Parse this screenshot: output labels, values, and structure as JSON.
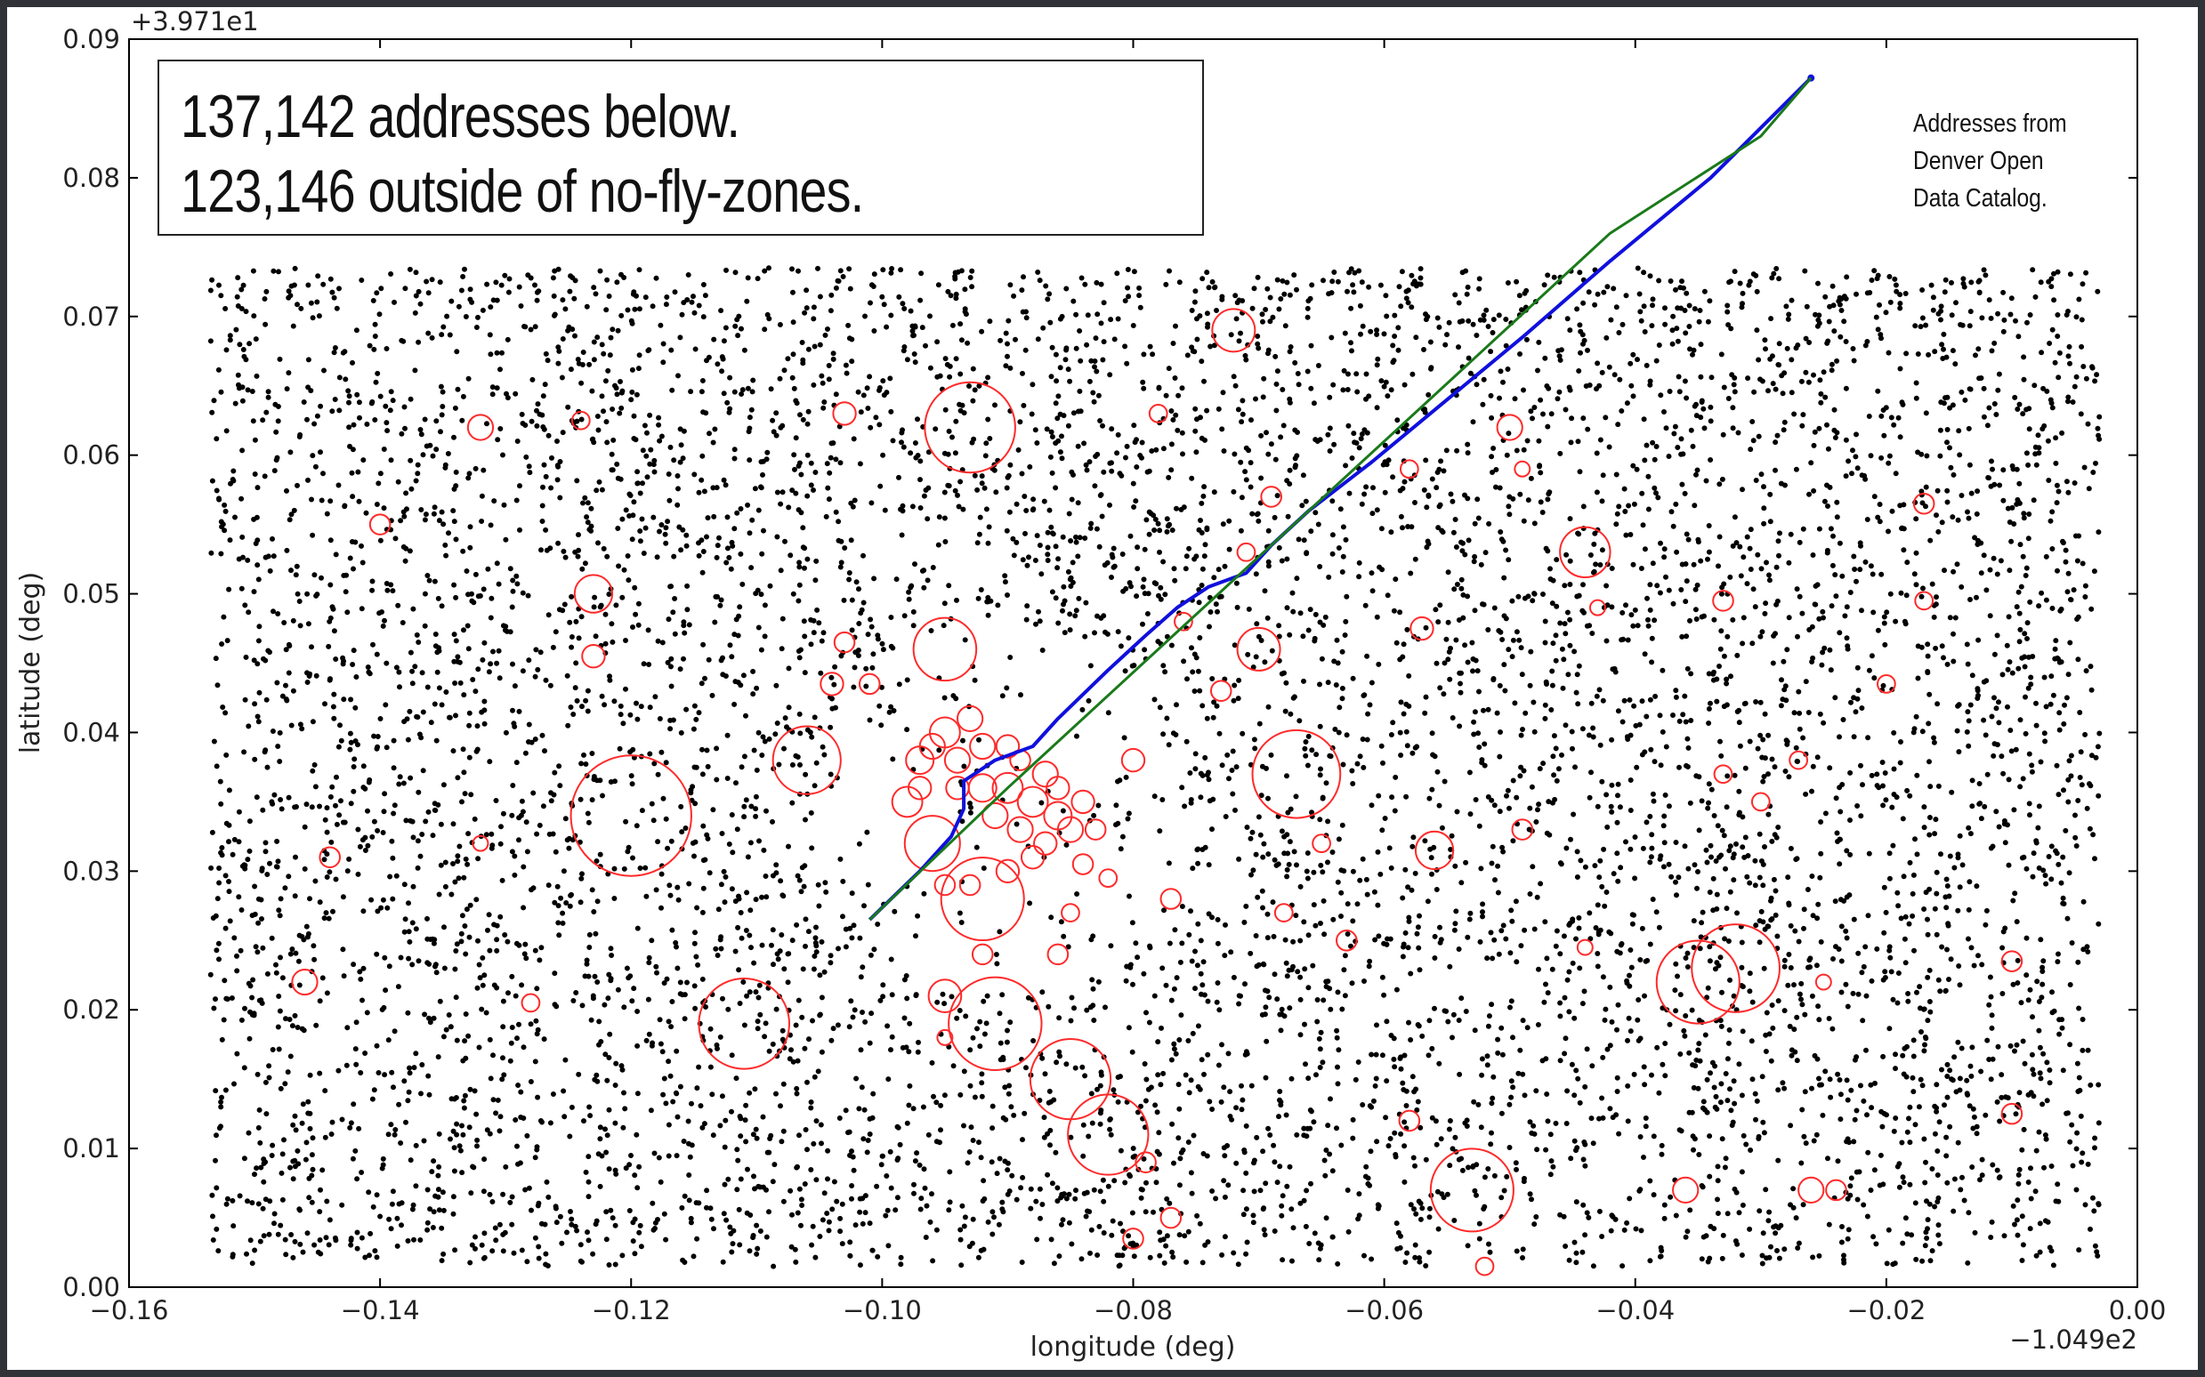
{
  "chart_data": {
    "type": "scatter",
    "title": "",
    "xlabel": "longitude (deg)",
    "ylabel": "latitude (deg)",
    "x_offset_label": "−1.049e2",
    "y_offset_label": "+3.971e1",
    "xlim": [
      -0.16,
      0.0
    ],
    "ylim": [
      0.0,
      0.09
    ],
    "x_ticks": [
      -0.16,
      -0.14,
      -0.12,
      -0.1,
      -0.08,
      -0.06,
      -0.04,
      -0.02,
      0.0
    ],
    "y_ticks": [
      0.0,
      0.01,
      0.02,
      0.03,
      0.04,
      0.05,
      0.06,
      0.07,
      0.08,
      0.09
    ],
    "x_tick_labels": [
      "−0.16",
      "−0.14",
      "−0.12",
      "−0.10",
      "−0.08",
      "−0.06",
      "−0.04",
      "−0.02",
      "0.00"
    ],
    "y_tick_labels": [
      "0.00",
      "0.01",
      "0.02",
      "0.03",
      "0.04",
      "0.05",
      "0.06",
      "0.07",
      "0.08",
      "0.09"
    ],
    "grid": false,
    "annotations": {
      "stats_line_1": "137,142 addresses below.",
      "stats_line_2": "123,146 outside of no-fly-zones.",
      "source": "Addresses from Denver Open Data Catalog."
    },
    "address_region": {
      "x_range": [
        -0.1535,
        -0.003
      ],
      "y_range": [
        0.0015,
        0.0735
      ],
      "point_color": "#000000"
    },
    "no_fly_zones": {
      "color": "#ff2a2a",
      "zones": [
        [
          -0.12,
          0.034,
          0.0048
        ],
        [
          -0.093,
          0.062,
          0.0036
        ],
        [
          -0.111,
          0.019,
          0.0036
        ],
        [
          -0.106,
          0.038,
          0.0027
        ],
        [
          -0.095,
          0.046,
          0.0025
        ],
        [
          -0.067,
          0.037,
          0.0035
        ],
        [
          -0.091,
          0.019,
          0.0037
        ],
        [
          -0.085,
          0.015,
          0.0032
        ],
        [
          -0.082,
          0.011,
          0.0032
        ],
        [
          -0.053,
          0.007,
          0.0033
        ],
        [
          -0.035,
          0.022,
          0.0033
        ],
        [
          -0.032,
          0.023,
          0.0035
        ],
        [
          -0.092,
          0.028,
          0.0033
        ],
        [
          -0.096,
          0.032,
          0.0022
        ],
        [
          -0.07,
          0.046,
          0.0017
        ],
        [
          -0.044,
          0.053,
          0.002
        ],
        [
          -0.072,
          0.069,
          0.0017
        ],
        [
          -0.123,
          0.05,
          0.0015
        ],
        [
          -0.056,
          0.0315,
          0.0015
        ],
        [
          -0.095,
          0.021,
          0.0013
        ],
        [
          -0.132,
          0.062,
          0.001
        ],
        [
          -0.14,
          0.055,
          0.0008
        ],
        [
          -0.103,
          0.063,
          0.0009
        ],
        [
          -0.078,
          0.063,
          0.0007
        ],
        [
          -0.124,
          0.0625,
          0.0007
        ],
        [
          -0.123,
          0.0455,
          0.0009
        ],
        [
          -0.104,
          0.0435,
          0.0009
        ],
        [
          -0.101,
          0.0435,
          0.0008
        ],
        [
          -0.103,
          0.0465,
          0.0008
        ],
        [
          -0.144,
          0.031,
          0.0008
        ],
        [
          -0.132,
          0.032,
          0.0006
        ],
        [
          -0.146,
          0.022,
          0.001
        ],
        [
          -0.128,
          0.0205,
          0.0007
        ],
        [
          -0.05,
          0.062,
          0.001
        ],
        [
          -0.058,
          0.059,
          0.0007
        ],
        [
          -0.049,
          0.059,
          0.0006
        ],
        [
          -0.017,
          0.0565,
          0.0008
        ],
        [
          -0.017,
          0.0495,
          0.0007
        ],
        [
          -0.033,
          0.0495,
          0.0008
        ],
        [
          -0.043,
          0.049,
          0.0006
        ],
        [
          -0.057,
          0.0475,
          0.0009
        ],
        [
          -0.02,
          0.0435,
          0.0007
        ],
        [
          -0.027,
          0.038,
          0.0007
        ],
        [
          -0.033,
          0.037,
          0.0007
        ],
        [
          -0.03,
          0.035,
          0.0007
        ],
        [
          -0.049,
          0.033,
          0.0008
        ],
        [
          -0.065,
          0.032,
          0.0007
        ],
        [
          -0.08,
          0.038,
          0.0009
        ],
        [
          -0.073,
          0.043,
          0.0008
        ],
        [
          -0.076,
          0.048,
          0.0007
        ],
        [
          -0.071,
          0.053,
          0.0007
        ],
        [
          -0.069,
          0.057,
          0.0008
        ],
        [
          -0.068,
          0.027,
          0.0007
        ],
        [
          -0.063,
          0.025,
          0.0008
        ],
        [
          -0.077,
          0.028,
          0.0008
        ],
        [
          -0.082,
          0.0295,
          0.0007
        ],
        [
          -0.085,
          0.027,
          0.0007
        ],
        [
          -0.044,
          0.0245,
          0.0006
        ],
        [
          -0.025,
          0.022,
          0.0006
        ],
        [
          -0.01,
          0.0235,
          0.0008
        ],
        [
          -0.01,
          0.0125,
          0.0008
        ],
        [
          -0.058,
          0.012,
          0.0008
        ],
        [
          -0.052,
          0.0015,
          0.0007
        ],
        [
          -0.036,
          0.007,
          0.001
        ],
        [
          -0.026,
          0.007,
          0.001
        ],
        [
          -0.024,
          0.007,
          0.0008
        ],
        [
          -0.08,
          0.0035,
          0.0008
        ],
        [
          -0.077,
          0.005,
          0.0008
        ],
        [
          -0.079,
          0.009,
          0.0008
        ],
        [
          -0.086,
          0.024,
          0.0008
        ],
        [
          -0.092,
          0.024,
          0.0008
        ],
        [
          -0.095,
          0.018,
          0.0006
        ],
        [
          -0.098,
          0.035,
          0.0012
        ],
        [
          -0.097,
          0.038,
          0.0011
        ],
        [
          -0.095,
          0.04,
          0.0012
        ],
        [
          -0.094,
          0.038,
          0.001
        ],
        [
          -0.093,
          0.041,
          0.001
        ],
        [
          -0.092,
          0.036,
          0.0011
        ],
        [
          -0.091,
          0.034,
          0.001
        ],
        [
          -0.09,
          0.036,
          0.0012
        ],
        [
          -0.089,
          0.033,
          0.001
        ],
        [
          -0.088,
          0.035,
          0.0012
        ],
        [
          -0.087,
          0.037,
          0.001
        ],
        [
          -0.086,
          0.034,
          0.0011
        ],
        [
          -0.085,
          0.033,
          0.001
        ],
        [
          -0.088,
          0.031,
          0.0009
        ],
        [
          -0.09,
          0.03,
          0.0009
        ],
        [
          -0.093,
          0.029,
          0.0008
        ],
        [
          -0.095,
          0.029,
          0.0008
        ],
        [
          -0.096,
          0.039,
          0.001
        ],
        [
          -0.097,
          0.036,
          0.0009
        ],
        [
          -0.094,
          0.036,
          0.0009
        ],
        [
          -0.092,
          0.039,
          0.001
        ],
        [
          -0.09,
          0.039,
          0.0009
        ],
        [
          -0.089,
          0.038,
          0.0008
        ],
        [
          -0.087,
          0.032,
          0.0009
        ],
        [
          -0.086,
          0.036,
          0.0009
        ],
        [
          -0.084,
          0.035,
          0.0009
        ],
        [
          -0.083,
          0.033,
          0.0008
        ],
        [
          -0.084,
          0.0305,
          0.0008
        ]
      ]
    },
    "series": [
      {
        "color": "#1010dd",
        "points": [
          [
            -0.101,
            0.0265
          ],
          [
            -0.097,
            0.03
          ],
          [
            -0.0945,
            0.0325
          ],
          [
            -0.0935,
            0.0345
          ],
          [
            -0.0935,
            0.0365
          ],
          [
            -0.091,
            0.038
          ],
          [
            -0.088,
            0.039
          ],
          [
            -0.086,
            0.041
          ],
          [
            -0.082,
            0.0445
          ],
          [
            -0.079,
            0.047
          ],
          [
            -0.0765,
            0.049
          ],
          [
            -0.074,
            0.0505
          ],
          [
            -0.071,
            0.0515
          ],
          [
            -0.069,
            0.0535
          ],
          [
            -0.066,
            0.056
          ],
          [
            -0.061,
            0.0595
          ],
          [
            -0.055,
            0.064
          ],
          [
            -0.049,
            0.0685
          ],
          [
            -0.042,
            0.074
          ],
          [
            -0.034,
            0.08
          ],
          [
            -0.026,
            0.0872
          ]
        ]
      },
      {
        "color": "#1a7a1a",
        "points": [
          [
            -0.101,
            0.0265
          ],
          [
            -0.09,
            0.036
          ],
          [
            -0.078,
            0.046
          ],
          [
            -0.066,
            0.056
          ],
          [
            -0.054,
            0.066
          ],
          [
            -0.042,
            0.076
          ],
          [
            -0.03,
            0.083
          ],
          [
            -0.026,
            0.0872
          ]
        ]
      }
    ]
  }
}
